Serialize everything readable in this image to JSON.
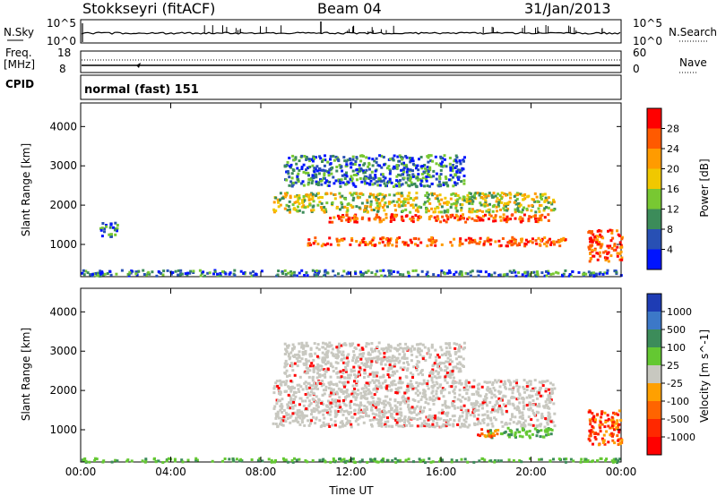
{
  "header": {
    "station": "Stokkseyri (fitACF)",
    "beam": "Beam 04",
    "date": "31/Jan/2013"
  },
  "panels": {
    "nsky_label": "N.Sky",
    "nsky_ticks": [
      "10^5",
      "10^0"
    ],
    "nsearch_label": "N.Search",
    "nsearch_ticks": [
      "10^5",
      "10^0"
    ],
    "freq_label_line1": "Freq.",
    "freq_label_line2": "[MHz]",
    "freq_ticks": [
      "18",
      "8"
    ],
    "nave_label": "Nave",
    "nave_ticks": [
      "60",
      "0"
    ],
    "cpid_label": "CPID",
    "cpid_value": "normal (fast) 151"
  },
  "chart_data": [
    {
      "type": "heatmap",
      "title": "",
      "ylabel": "Slant Range [km]",
      "ylim": [
        180,
        4600
      ],
      "yticks": [
        1000,
        2000,
        3000,
        4000
      ],
      "xlabel": "",
      "xlim": [
        "00:00",
        "24:00"
      ],
      "xticks": [
        "00:00",
        "04:00",
        "08:00",
        "12:00",
        "16:00",
        "20:00",
        "00:00"
      ],
      "colorbar": {
        "label": "Power [dB]",
        "ticks": [
          "28",
          "24",
          "20",
          "16",
          "12",
          "8",
          "4"
        ],
        "colors": [
          "#ff0000",
          "#ff5a00",
          "#ff9b00",
          "#f0c800",
          "#78c832",
          "#3c8c5a",
          "#2850b4",
          "#0014ff"
        ]
      },
      "scatter_regions": [
        {
          "t_start": 10.0,
          "t_end": 21.5,
          "range_center": 1100,
          "range_width": 220,
          "level": "high"
        },
        {
          "t_start": 11.0,
          "t_end": 21.0,
          "range_center": 1700,
          "range_width": 200,
          "level": "high"
        },
        {
          "t_start": 8.5,
          "t_end": 21.0,
          "range_center": 2100,
          "range_width": 500,
          "level": "medium"
        },
        {
          "t_start": 9.0,
          "t_end": 17.0,
          "range_center": 2900,
          "range_width": 800,
          "level": "low"
        },
        {
          "t_start": 0.0,
          "t_end": 24.0,
          "range_center": 300,
          "range_width": 150,
          "level": "low"
        },
        {
          "t_start": 0.8,
          "t_end": 1.6,
          "range_center": 1400,
          "range_width": 400,
          "level": "low"
        },
        {
          "t_start": 22.5,
          "t_end": 24.0,
          "range_center": 1000,
          "range_width": 800,
          "level": "high"
        }
      ]
    },
    {
      "type": "heatmap",
      "title": "",
      "ylabel": "Slant Range [km]",
      "ylim": [
        180,
        4600
      ],
      "yticks": [
        1000,
        2000,
        3000,
        4000
      ],
      "xlabel": "Time UT",
      "xlim": [
        "00:00",
        "24:00"
      ],
      "xticks": [
        "00:00",
        "04:00",
        "08:00",
        "12:00",
        "16:00",
        "20:00",
        "00:00"
      ],
      "colorbar": {
        "label": "Velocity [m s^-1]",
        "ticks": [
          "1000",
          "500",
          "100",
          "25",
          "-25",
          "-100",
          "-500",
          "-1000"
        ],
        "colors": [
          "#1e3cb4",
          "#3c78c8",
          "#3c8c5a",
          "#64c832",
          "#c8c8c0",
          "#ffa000",
          "#ff6400",
          "#ff2800",
          "#ff0000"
        ]
      },
      "scatter_regions": [
        {
          "t_start": 8.5,
          "t_end": 21.0,
          "range_center": 1700,
          "range_width": 1200,
          "level": "gray"
        },
        {
          "t_start": 9.0,
          "t_end": 17.0,
          "range_center": 2800,
          "range_width": 900,
          "level": "gray"
        },
        {
          "t_start": 18.0,
          "t_end": 21.0,
          "range_center": 950,
          "range_width": 250,
          "level": "green"
        },
        {
          "t_start": 17.5,
          "t_end": 18.5,
          "range_center": 950,
          "range_width": 200,
          "level": "orange"
        },
        {
          "t_start": 22.5,
          "t_end": 24.0,
          "range_center": 1100,
          "range_width": 900,
          "level": "orange"
        },
        {
          "t_start": 0.0,
          "t_end": 24.0,
          "range_center": 250,
          "range_width": 100,
          "level": "green"
        }
      ]
    }
  ]
}
